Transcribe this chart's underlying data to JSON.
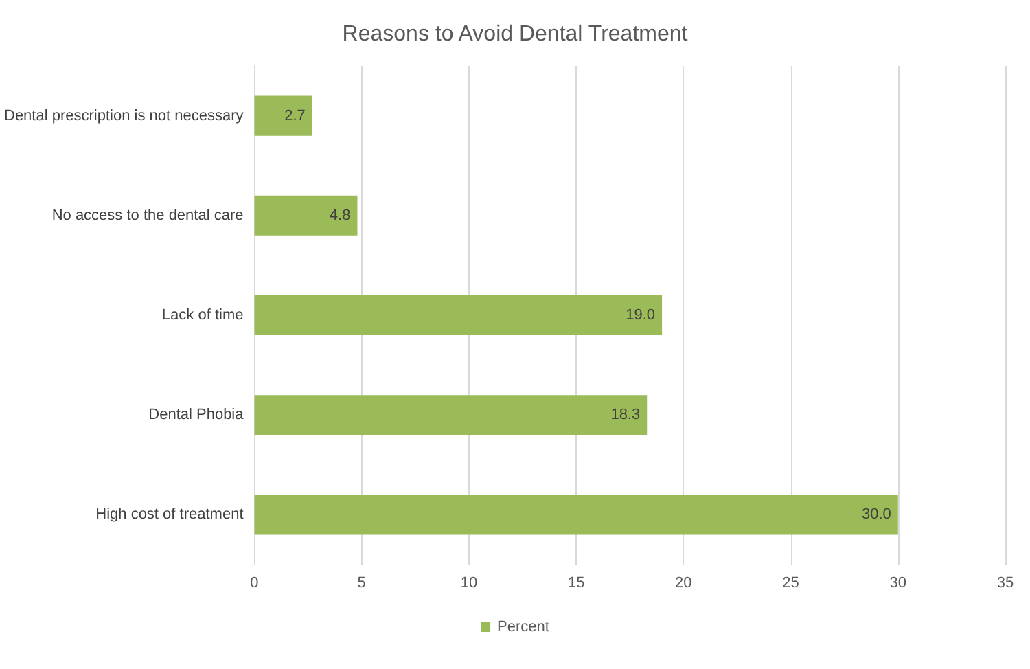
{
  "chart_data": {
    "type": "bar",
    "orientation": "horizontal",
    "title": "Reasons to Avoid Dental Treatment",
    "categories": [
      "Dental prescription is not necessary",
      "No access to the dental care",
      "Lack of time",
      "Dental Phobia",
      "High cost of treatment"
    ],
    "series": [
      {
        "name": "Percent",
        "color": "#9bbb59",
        "values": [
          2.7,
          4.8,
          19.0,
          18.3,
          30.0
        ],
        "value_labels": [
          "2.7",
          "4.8",
          "19.0",
          "18.3",
          "30.0"
        ]
      }
    ],
    "xlim": [
      0,
      35
    ],
    "xticks": [
      0,
      5,
      10,
      15,
      20,
      25,
      30,
      35
    ],
    "grid": "x",
    "legend": "bottom"
  }
}
